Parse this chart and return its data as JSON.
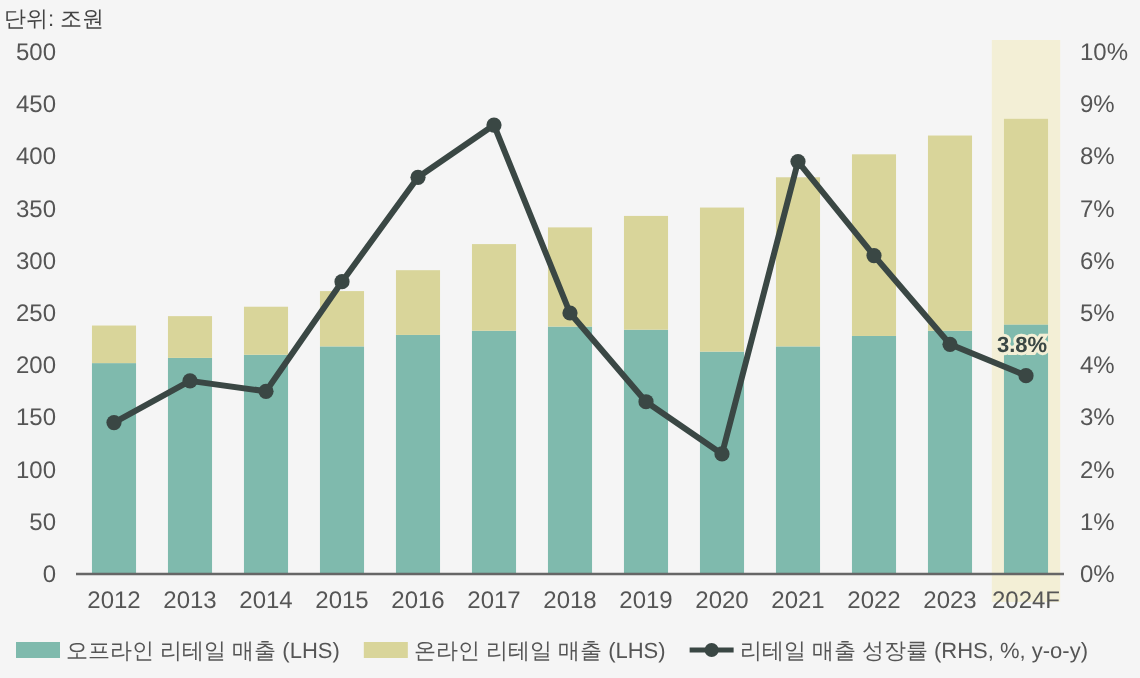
{
  "chart_data": {
    "type": "bar",
    "stacked": true,
    "ylabel": "단위: 조원",
    "categories": [
      "2012",
      "2013",
      "2014",
      "2015",
      "2016",
      "2017",
      "2018",
      "2019",
      "2020",
      "2021",
      "2022",
      "2023",
      "2024F"
    ],
    "series": [
      {
        "name": "오프라인 리테일 매출 (LHS)",
        "color": "#7fbaad",
        "values": [
          202,
          207,
          210,
          218,
          229,
          233,
          237,
          234,
          213,
          218,
          228,
          233,
          239
        ]
      },
      {
        "name": "온라인 리테일 매출 (LHS)",
        "color": "#d9d59a",
        "values": [
          36,
          40,
          46,
          53,
          62,
          83,
          95,
          109,
          138,
          162,
          174,
          187,
          197
        ]
      },
      {
        "name": "리테일 매출 성장률 (RHS, %, y-o-y)",
        "type": "line",
        "axis": "y2",
        "color": "#3a4744",
        "marker": "circle",
        "line_style": "solid",
        "values": [
          2.9,
          3.7,
          3.5,
          5.6,
          7.6,
          8.6,
          5.0,
          3.3,
          2.3,
          7.9,
          6.1,
          4.4,
          3.8
        ],
        "value_labels": [
          null,
          null,
          null,
          null,
          null,
          null,
          null,
          null,
          null,
          null,
          null,
          null,
          "3.8%"
        ]
      }
    ],
    "ylim": [
      0,
      500
    ],
    "yticks": [
      0,
      50,
      100,
      150,
      200,
      250,
      300,
      350,
      400,
      450,
      500
    ],
    "y2lim": [
      0,
      10
    ],
    "y2ticks": [
      {
        "value": 0,
        "label": "0%"
      },
      {
        "value": 1,
        "label": "1%"
      },
      {
        "value": 2,
        "label": "2%"
      },
      {
        "value": 3,
        "label": "3%"
      },
      {
        "value": 4,
        "label": "4%"
      },
      {
        "value": 5,
        "label": "5%"
      },
      {
        "value": 6,
        "label": "6%"
      },
      {
        "value": 7,
        "label": "7%"
      },
      {
        "value": 8,
        "label": "8%"
      },
      {
        "value": 9,
        "label": "9%"
      },
      {
        "value": 10,
        "label": "10%"
      }
    ],
    "bands": [
      {
        "axis": "x",
        "from": "2024F",
        "to": "2024F",
        "color": "#f3efd6"
      }
    ],
    "grid": false,
    "legend": "bottom"
  }
}
